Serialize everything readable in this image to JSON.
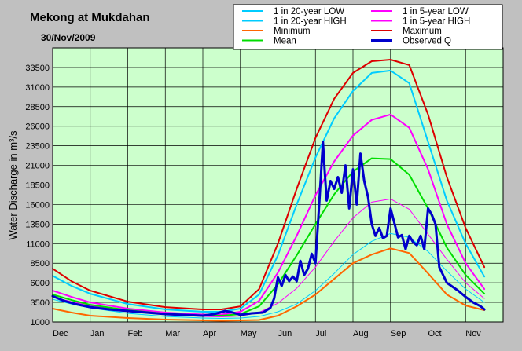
{
  "chart_data": {
    "type": "line",
    "title": "Mekong at Mukdahan",
    "subtitle": "30/Nov/2009",
    "xlabel": "",
    "ylabel": "Water Discharge in m³/s",
    "ylim": [
      1000,
      36000
    ],
    "grid": true,
    "legend_placement": "top-right",
    "x_ticks": [
      "Dec",
      "Jan",
      "Feb",
      "Mar",
      "Apr",
      "May",
      "Jun",
      "Jul",
      "Aug",
      "Sep",
      "Oct",
      "Nov"
    ],
    "y_ticks": [
      1000,
      3500,
      6000,
      8500,
      11000,
      13500,
      16000,
      18500,
      21000,
      23500,
      26000,
      28500,
      31000,
      33500
    ],
    "x_unit": "month index from 1 Dec 2008",
    "series": [
      {
        "name": "1 in 20-year LOW",
        "color": "#00ccff",
        "thin": true,
        "x": [
          0,
          0.5,
          1,
          2,
          3,
          4,
          4.5,
          5,
          5.5,
          6,
          6.5,
          7,
          7.5,
          8,
          8.5,
          9,
          9.5,
          10,
          10.5,
          11,
          11.5
        ],
        "values": [
          3900,
          3300,
          2800,
          2100,
          1700,
          1500,
          1450,
          1500,
          1700,
          2300,
          3300,
          5000,
          7200,
          9600,
          11300,
          12300,
          11800,
          10000,
          7500,
          5200,
          3500
        ]
      },
      {
        "name": "1 in 5-year LOW",
        "color": "#ff00ff",
        "thin": true,
        "x": [
          0,
          0.5,
          1,
          2,
          3,
          4,
          4.5,
          5,
          5.5,
          6,
          6.5,
          7,
          7.5,
          8,
          8.5,
          9,
          9.5,
          10,
          10.5,
          11,
          11.5
        ],
        "values": [
          4200,
          3600,
          3100,
          2400,
          1950,
          1700,
          1650,
          1750,
          2200,
          3400,
          5300,
          8000,
          11300,
          14300,
          16300,
          16700,
          15400,
          12200,
          9000,
          6000,
          4000
        ]
      },
      {
        "name": "1 in 20-year HIGH",
        "color": "#00ccff",
        "thin": false,
        "x": [
          0,
          0.5,
          1,
          2,
          3,
          4,
          4.5,
          5,
          5.5,
          6,
          6.5,
          7,
          7.5,
          8,
          8.5,
          9,
          9.5,
          10,
          10.5,
          11,
          11.5
        ],
        "values": [
          6900,
          5600,
          4600,
          3300,
          2600,
          2300,
          2300,
          2700,
          4500,
          9500,
          16000,
          22000,
          27000,
          30500,
          32800,
          33100,
          31500,
          24000,
          16500,
          11000,
          6800
        ]
      },
      {
        "name": "1 in 5-year HIGH",
        "color": "#ff00ff",
        "thin": false,
        "x": [
          0,
          0.5,
          1,
          2,
          3,
          4,
          4.5,
          5,
          5.5,
          6,
          6.5,
          7,
          7.5,
          8,
          8.5,
          9,
          9.5,
          10,
          10.5,
          11,
          11.5
        ],
        "values": [
          5000,
          4200,
          3500,
          2700,
          2200,
          1950,
          1950,
          2300,
          3700,
          7300,
          12000,
          17200,
          21500,
          24800,
          26800,
          27500,
          25800,
          20500,
          13500,
          8500,
          5200
        ]
      },
      {
        "name": "Minimum",
        "color": "#ff6600",
        "thin": false,
        "x": [
          0,
          0.5,
          1,
          2,
          3,
          4,
          4.5,
          5,
          5.5,
          6,
          6.5,
          7,
          7.5,
          8,
          8.5,
          9,
          9.5,
          10,
          10.5,
          11,
          11.5
        ],
        "values": [
          2700,
          2200,
          1800,
          1500,
          1300,
          1200,
          1150,
          1200,
          1250,
          1800,
          3000,
          4500,
          6500,
          8500,
          9600,
          10400,
          9800,
          7200,
          4500,
          3100,
          2500
        ]
      },
      {
        "name": "Mean",
        "color": "#00dd00",
        "thin": false,
        "x": [
          0,
          0.5,
          1,
          2,
          3,
          4,
          4.5,
          5,
          5.5,
          6,
          6.5,
          7,
          7.5,
          8,
          8.5,
          9,
          9.5,
          10,
          10.5,
          11,
          11.5
        ],
        "values": [
          4500,
          3800,
          3200,
          2500,
          2050,
          1800,
          1800,
          2000,
          3000,
          5800,
          9500,
          13500,
          17300,
          20200,
          21900,
          21800,
          19800,
          15500,
          10500,
          7000,
          4600
        ]
      },
      {
        "name": "Maximum",
        "color": "#dd0000",
        "thin": false,
        "x": [
          0,
          0.5,
          1,
          2,
          3,
          4,
          4.5,
          5,
          5.5,
          6,
          6.5,
          7,
          7.5,
          8,
          8.5,
          9,
          9.5,
          10,
          10.5,
          11,
          11.5
        ],
        "values": [
          7800,
          6200,
          5000,
          3600,
          2900,
          2600,
          2600,
          3000,
          5200,
          11000,
          18000,
          24500,
          29500,
          32800,
          34300,
          34500,
          33800,
          27500,
          19500,
          13000,
          8000
        ]
      },
      {
        "name": "Observed Q",
        "color": "#0000cc",
        "thin": false,
        "x": [
          0,
          0.3,
          0.6,
          1,
          1.5,
          2,
          2.5,
          3,
          3.5,
          4,
          4.3,
          4.6,
          4.8,
          5,
          5.3,
          5.6,
          5.8,
          5.9,
          6,
          6.1,
          6.2,
          6.3,
          6.4,
          6.5,
          6.6,
          6.7,
          6.8,
          6.9,
          7,
          7.1,
          7.2,
          7.25,
          7.3,
          7.4,
          7.5,
          7.6,
          7.7,
          7.8,
          7.9,
          8,
          8.1,
          8.2,
          8.3,
          8.4,
          8.5,
          8.6,
          8.7,
          8.8,
          8.9,
          9,
          9.1,
          9.2,
          9.3,
          9.4,
          9.5,
          9.6,
          9.7,
          9.8,
          9.9,
          10,
          10.1,
          10.2,
          10.3,
          10.5,
          10.8,
          11,
          11.2,
          11.4,
          11.5
        ],
        "values": [
          4300,
          3700,
          3300,
          2900,
          2600,
          2400,
          2200,
          2000,
          1900,
          1800,
          2000,
          2400,
          2200,
          1900,
          2100,
          2200,
          2800,
          4000,
          6700,
          5600,
          7000,
          6200,
          6800,
          6200,
          8800,
          7000,
          7800,
          9700,
          8500,
          16000,
          24000,
          20000,
          16500,
          19000,
          18000,
          19500,
          17500,
          21000,
          15500,
          20500,
          16000,
          22500,
          19000,
          17000,
          13500,
          12000,
          13000,
          11700,
          12000,
          15500,
          13700,
          11800,
          12100,
          10300,
          12000,
          11200,
          10800,
          12000,
          10300,
          15500,
          14700,
          13500,
          8000,
          6000,
          5000,
          4200,
          3500,
          3000,
          2600
        ]
      }
    ]
  }
}
